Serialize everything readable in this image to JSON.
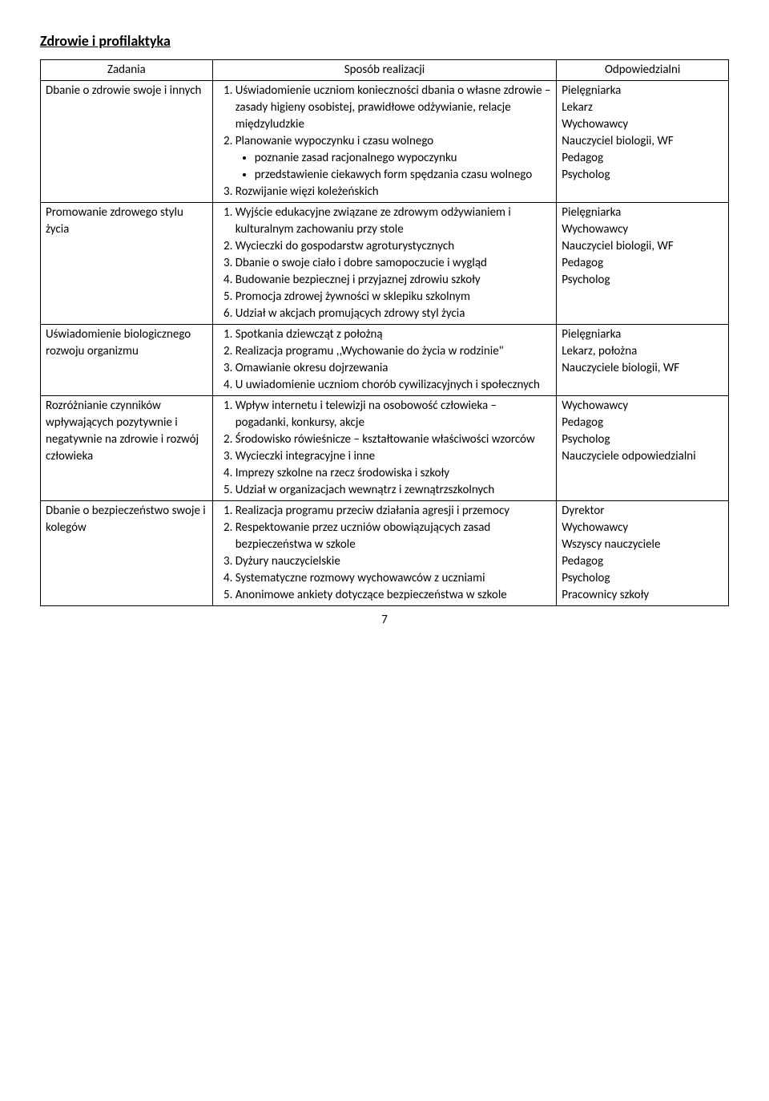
{
  "section_title": "Zdrowie i profilaktyka",
  "headers": {
    "col1": "Zadania",
    "col2": "Sposób realizacji",
    "col3": "Odpowiedzialni"
  },
  "rows": [
    {
      "zadanie": "Dbanie o zdrowie swoje i innych",
      "sposob": [
        {
          "text": "Uświadomienie uczniom konieczności dbania o własne zdrowie – zasady higieny osobistej, prawidłowe odżywianie, relacje międzyludzkie"
        },
        {
          "text": "Planowanie wypoczynku i czasu wolnego",
          "sub": [
            "poznanie zasad racjonalnego wypoczynku",
            "przedstawienie ciekawych form spędzania czasu wolnego"
          ]
        },
        {
          "text": "Rozwijanie więzi koleżeńskich"
        }
      ],
      "odpowiedzialni": [
        "Pielęgniarka",
        "Lekarz",
        "Wychowawcy",
        "Nauczyciel biologii, WF",
        "Pedagog",
        "Psycholog"
      ]
    },
    {
      "zadanie": "Promowanie zdrowego stylu życia",
      "sposob": [
        {
          "text": "Wyjście edukacyjne związane ze zdrowym odżywianiem i kulturalnym zachowaniu przy stole"
        },
        {
          "text": "Wycieczki do gospodarstw agroturystycznych"
        },
        {
          "text": "Dbanie o swoje ciało i dobre samopoczucie i wygląd"
        },
        {
          "text": "Budowanie bezpiecznej i przyjaznej zdrowiu szkoły"
        },
        {
          "text": "Promocja zdrowej żywności w sklepiku szkolnym"
        },
        {
          "text": "Udział w akcjach promujących zdrowy styl życia"
        }
      ],
      "odpowiedzialni": [
        "Pielęgniarka",
        "Wychowawcy",
        "Nauczyciel biologii, WF",
        "Pedagog",
        "Psycholog"
      ]
    },
    {
      "zadanie": "Uświadomienie biologicznego rozwoju organizmu",
      "sposob": [
        {
          "text": "Spotkania dziewcząt z położną"
        },
        {
          "text": "Realizacja programu ,,Wychowanie do życia w rodzinie\""
        },
        {
          "text": "Omawianie okresu dojrzewania"
        },
        {
          "text": "U uwiadomienie uczniom chorób cywilizacyjnych i społecznych"
        }
      ],
      "odpowiedzialni": [
        "Pielęgniarka",
        "Lekarz, położna",
        "Nauczyciele biologii, WF"
      ]
    },
    {
      "zadanie": "Rozróżnianie czynników wpływających pozytywnie i negatywnie na zdrowie i rozwój człowieka",
      "sposob": [
        {
          "text": "Wpływ internetu i telewizji na osobowość człowieka – pogadanki, konkursy, akcje"
        },
        {
          "text": "Środowisko rówieśnicze – kształtowanie właściwości wzorców"
        },
        {
          "text": "Wycieczki integracyjne i inne"
        },
        {
          "text": "Imprezy szkolne na rzecz środowiska i szkoły"
        },
        {
          "text": "Udział w organizacjach wewnątrz i zewnątrzszkolnych"
        }
      ],
      "odpowiedzialni": [
        "Wychowawcy",
        "Pedagog",
        "Psycholog",
        "Nauczyciele odpowiedzialni"
      ]
    },
    {
      "zadanie": "Dbanie o bezpieczeństwo swoje i kolegów",
      "sposob": [
        {
          "text": "Realizacja programu przeciw działania agresji i przemocy"
        },
        {
          "text": "Respektowanie przez uczniów obowiązujących zasad bezpieczeństwa w szkole"
        },
        {
          "text": "Dyżury nauczycielskie"
        },
        {
          "text": "Systematyczne rozmowy wychowawców z uczniami"
        },
        {
          "text": "Anonimowe ankiety dotyczące bezpieczeństwa w szkole"
        }
      ],
      "odpowiedzialni": [
        "Dyrektor",
        "Wychowawcy",
        "Wszyscy nauczyciele",
        "Pedagog",
        "Psycholog",
        "Pracownicy szkoły"
      ]
    }
  ],
  "page_number": "7"
}
